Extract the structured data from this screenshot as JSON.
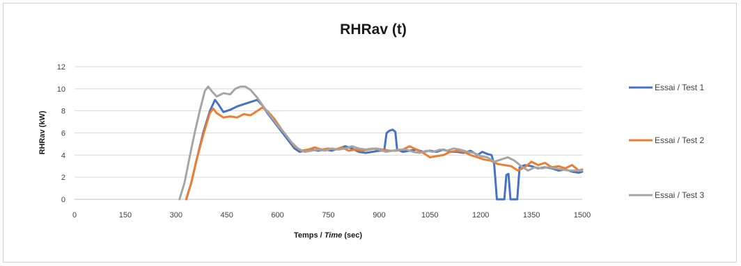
{
  "chart_data": {
    "type": "line",
    "title": "RHRav (t)",
    "xlabel_plain": "Temps / ",
    "xlabel_italic": "Time",
    "xlabel_unit": " (sec)",
    "ylabel": "RHRav (kW)",
    "xlim": [
      0,
      1500
    ],
    "ylim": [
      0,
      12
    ],
    "x_ticks": [
      0,
      150,
      300,
      450,
      600,
      750,
      900,
      1050,
      1200,
      1350,
      1500
    ],
    "y_ticks": [
      0,
      2,
      4,
      6,
      8,
      10,
      12
    ],
    "grid": "horizontal",
    "legend_position": "right",
    "series": [
      {
        "name": "Essai / Test 1",
        "color": "#4472c4",
        "points": [
          [
            330,
            0
          ],
          [
            345,
            1.5
          ],
          [
            360,
            3.5
          ],
          [
            380,
            6
          ],
          [
            400,
            8
          ],
          [
            415,
            9
          ],
          [
            425,
            8.6
          ],
          [
            440,
            7.9
          ],
          [
            460,
            8.1
          ],
          [
            480,
            8.4
          ],
          [
            500,
            8.6
          ],
          [
            520,
            8.8
          ],
          [
            540,
            9.0
          ],
          [
            555,
            8.5
          ],
          [
            570,
            7.8
          ],
          [
            590,
            7.0
          ],
          [
            610,
            6.2
          ],
          [
            630,
            5.4
          ],
          [
            650,
            4.6
          ],
          [
            665,
            4.3
          ],
          [
            680,
            4.4
          ],
          [
            700,
            4.5
          ],
          [
            720,
            4.4
          ],
          [
            740,
            4.5
          ],
          [
            760,
            4.4
          ],
          [
            780,
            4.6
          ],
          [
            800,
            4.8
          ],
          [
            820,
            4.6
          ],
          [
            840,
            4.3
          ],
          [
            860,
            4.2
          ],
          [
            880,
            4.3
          ],
          [
            900,
            4.4
          ],
          [
            915,
            4.4
          ],
          [
            922,
            6.0
          ],
          [
            930,
            6.2
          ],
          [
            940,
            6.3
          ],
          [
            948,
            6.1
          ],
          [
            953,
            4.5
          ],
          [
            970,
            4.3
          ],
          [
            990,
            4.4
          ],
          [
            1010,
            4.5
          ],
          [
            1030,
            4.3
          ],
          [
            1050,
            4.4
          ],
          [
            1070,
            4.3
          ],
          [
            1090,
            4.5
          ],
          [
            1110,
            4.3
          ],
          [
            1130,
            4.3
          ],
          [
            1150,
            4.2
          ],
          [
            1170,
            4.4
          ],
          [
            1190,
            4.0
          ],
          [
            1205,
            4.3
          ],
          [
            1220,
            4.1
          ],
          [
            1232,
            4.0
          ],
          [
            1240,
            3.2
          ],
          [
            1248,
            0
          ],
          [
            1262,
            0
          ],
          [
            1270,
            0
          ],
          [
            1276,
            2.2
          ],
          [
            1282,
            2.3
          ],
          [
            1288,
            0
          ],
          [
            1300,
            0
          ],
          [
            1308,
            0
          ],
          [
            1315,
            2.9
          ],
          [
            1330,
            3.1
          ],
          [
            1350,
            3.0
          ],
          [
            1370,
            2.8
          ],
          [
            1390,
            2.9
          ],
          [
            1410,
            2.8
          ],
          [
            1430,
            2.6
          ],
          [
            1450,
            2.7
          ],
          [
            1470,
            2.5
          ],
          [
            1490,
            2.4
          ],
          [
            1500,
            2.5
          ]
        ]
      },
      {
        "name": "Essai / Test 2",
        "color": "#ed7d31",
        "points": [
          [
            330,
            0
          ],
          [
            345,
            1.5
          ],
          [
            360,
            3.5
          ],
          [
            380,
            5.8
          ],
          [
            400,
            7.8
          ],
          [
            410,
            8.2
          ],
          [
            420,
            7.8
          ],
          [
            440,
            7.4
          ],
          [
            460,
            7.5
          ],
          [
            480,
            7.4
          ],
          [
            500,
            7.7
          ],
          [
            520,
            7.6
          ],
          [
            540,
            8.0
          ],
          [
            555,
            8.3
          ],
          [
            570,
            8.0
          ],
          [
            590,
            7.3
          ],
          [
            610,
            6.4
          ],
          [
            630,
            5.6
          ],
          [
            650,
            4.8
          ],
          [
            670,
            4.4
          ],
          [
            690,
            4.5
          ],
          [
            710,
            4.7
          ],
          [
            730,
            4.5
          ],
          [
            750,
            4.6
          ],
          [
            770,
            4.5
          ],
          [
            790,
            4.7
          ],
          [
            810,
            4.4
          ],
          [
            830,
            4.5
          ],
          [
            850,
            4.4
          ],
          [
            870,
            4.5
          ],
          [
            890,
            4.6
          ],
          [
            910,
            4.5
          ],
          [
            930,
            4.4
          ],
          [
            950,
            4.4
          ],
          [
            970,
            4.5
          ],
          [
            990,
            4.8
          ],
          [
            1010,
            4.5
          ],
          [
            1030,
            4.2
          ],
          [
            1050,
            3.8
          ],
          [
            1070,
            3.9
          ],
          [
            1090,
            4.0
          ],
          [
            1110,
            4.3
          ],
          [
            1130,
            4.4
          ],
          [
            1150,
            4.3
          ],
          [
            1170,
            4.0
          ],
          [
            1190,
            3.8
          ],
          [
            1210,
            3.6
          ],
          [
            1230,
            3.5
          ],
          [
            1250,
            3.2
          ],
          [
            1270,
            3.1
          ],
          [
            1290,
            3.0
          ],
          [
            1310,
            2.6
          ],
          [
            1330,
            2.9
          ],
          [
            1350,
            3.4
          ],
          [
            1370,
            3.1
          ],
          [
            1390,
            3.3
          ],
          [
            1410,
            2.9
          ],
          [
            1430,
            3.0
          ],
          [
            1450,
            2.8
          ],
          [
            1470,
            3.1
          ],
          [
            1490,
            2.6
          ],
          [
            1500,
            2.7
          ]
        ]
      },
      {
        "name": "Essai / Test 3",
        "color": "#a5a5a5",
        "points": [
          [
            310,
            0
          ],
          [
            325,
            1.5
          ],
          [
            340,
            3.8
          ],
          [
            355,
            6
          ],
          [
            370,
            8
          ],
          [
            385,
            9.8
          ],
          [
            395,
            10.2
          ],
          [
            405,
            9.8
          ],
          [
            420,
            9.3
          ],
          [
            440,
            9.6
          ],
          [
            460,
            9.5
          ],
          [
            475,
            10.0
          ],
          [
            490,
            10.2
          ],
          [
            505,
            10.2
          ],
          [
            520,
            9.9
          ],
          [
            540,
            9.2
          ],
          [
            560,
            8.3
          ],
          [
            580,
            7.5
          ],
          [
            600,
            6.7
          ],
          [
            620,
            6.0
          ],
          [
            640,
            5.2
          ],
          [
            660,
            4.6
          ],
          [
            680,
            4.3
          ],
          [
            700,
            4.4
          ],
          [
            720,
            4.5
          ],
          [
            740,
            4.4
          ],
          [
            760,
            4.6
          ],
          [
            780,
            4.5
          ],
          [
            800,
            4.6
          ],
          [
            820,
            4.8
          ],
          [
            840,
            4.6
          ],
          [
            860,
            4.5
          ],
          [
            880,
            4.6
          ],
          [
            900,
            4.5
          ],
          [
            920,
            4.3
          ],
          [
            940,
            4.4
          ],
          [
            960,
            4.5
          ],
          [
            980,
            4.5
          ],
          [
            1000,
            4.3
          ],
          [
            1020,
            4.2
          ],
          [
            1040,
            4.4
          ],
          [
            1060,
            4.3
          ],
          [
            1080,
            4.5
          ],
          [
            1100,
            4.4
          ],
          [
            1120,
            4.6
          ],
          [
            1140,
            4.5
          ],
          [
            1160,
            4.3
          ],
          [
            1180,
            4.2
          ],
          [
            1200,
            3.9
          ],
          [
            1220,
            3.8
          ],
          [
            1240,
            3.4
          ],
          [
            1260,
            3.6
          ],
          [
            1280,
            3.8
          ],
          [
            1300,
            3.5
          ],
          [
            1320,
            3.0
          ],
          [
            1340,
            2.6
          ],
          [
            1360,
            2.9
          ],
          [
            1380,
            2.8
          ],
          [
            1400,
            2.9
          ],
          [
            1420,
            2.8
          ],
          [
            1440,
            2.7
          ],
          [
            1460,
            2.6
          ],
          [
            1480,
            2.6
          ],
          [
            1500,
            2.6
          ]
        ]
      }
    ]
  }
}
